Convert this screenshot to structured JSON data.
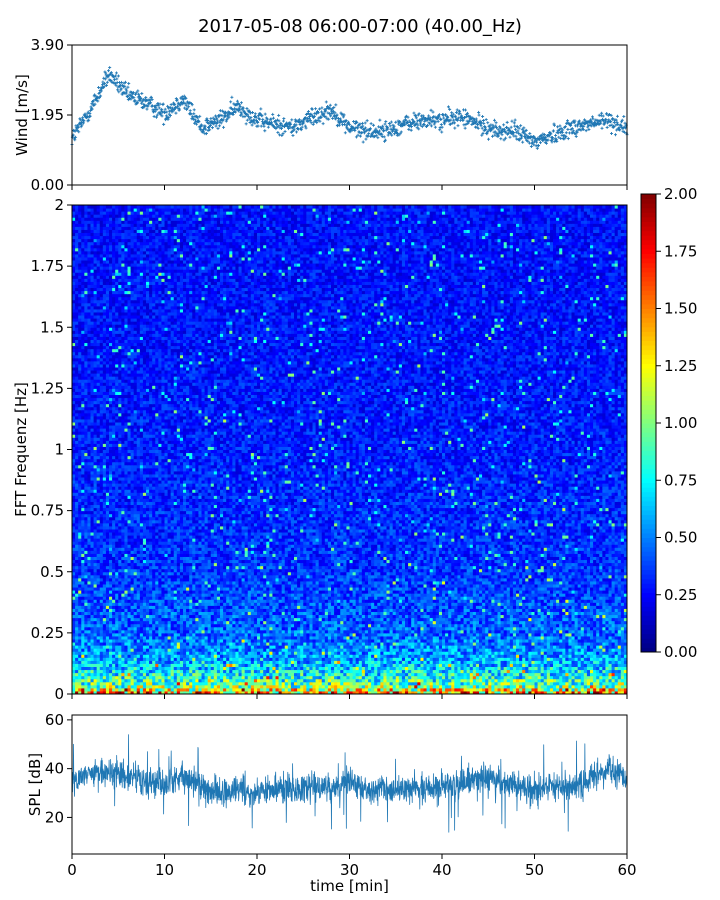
{
  "title": "2017-05-08 06:00-07:00 (40.00_Hz)",
  "chart_data": [
    {
      "type": "scatter",
      "panel": "wind",
      "ylabel": "Wind [m/s]",
      "xlim": [
        0,
        60
      ],
      "ylim": [
        0,
        3.9
      ],
      "yticks": [
        0,
        1.95,
        3.9
      ],
      "yticklabels": [
        "0.00",
        "1.95",
        "3.90"
      ],
      "marker": "+",
      "color": "#1f77b4",
      "series": [
        {
          "name": "wind",
          "x": [
            0,
            2,
            4,
            6,
            8,
            10,
            12,
            14,
            16,
            18,
            20,
            22,
            24,
            26,
            28,
            30,
            32,
            34,
            36,
            38,
            40,
            42,
            44,
            46,
            48,
            50,
            52,
            54,
            56,
            58,
            60
          ],
          "y": [
            1.3,
            2.1,
            3.1,
            2.5,
            2.3,
            2.0,
            2.4,
            1.6,
            1.8,
            2.2,
            1.8,
            1.7,
            1.6,
            1.9,
            2.1,
            1.6,
            1.5,
            1.5,
            1.7,
            1.8,
            1.8,
            1.9,
            1.7,
            1.5,
            1.5,
            1.2,
            1.4,
            1.6,
            1.7,
            1.8,
            1.6
          ]
        }
      ]
    },
    {
      "type": "heatmap",
      "panel": "spectrogram",
      "ylabel": "FFT Frequenz [Hz]",
      "xlim": [
        0,
        60
      ],
      "ylim": [
        0,
        2
      ],
      "yticks": [
        0,
        0.25,
        0.5,
        0.75,
        1,
        1.25,
        1.5,
        1.75,
        2
      ],
      "yticklabels": [
        "0",
        "0.25",
        "0.5",
        "0.75",
        "1",
        "1.25",
        "1.5",
        "1.75",
        "2"
      ],
      "colormap": "jet",
      "colorbar": {
        "range": [
          0,
          2
        ],
        "ticks": [
          0,
          0.25,
          0.5,
          0.75,
          1,
          1.25,
          1.5,
          1.75,
          2
        ],
        "ticklabels": [
          "0.00",
          "0.25",
          "0.50",
          "0.75",
          "1.00",
          "1.25",
          "1.50",
          "1.75",
          "2.00"
        ]
      },
      "typical_level": {
        "frequency_hz": [
          0.0,
          0.03,
          0.08,
          0.15,
          0.25,
          0.5,
          1.0,
          1.5,
          2.0
        ],
        "intensity": [
          1.5,
          1.0,
          0.75,
          0.55,
          0.45,
          0.35,
          0.3,
          0.28,
          0.27
        ]
      }
    },
    {
      "type": "line",
      "panel": "spl",
      "xlabel": "time [min]",
      "ylabel": "SPL [dB]",
      "xlim": [
        0,
        60
      ],
      "ylim": [
        5,
        62
      ],
      "yticks": [
        20,
        40,
        60
      ],
      "yticklabels": [
        "20",
        "40",
        "60"
      ],
      "xticks": [
        0,
        10,
        20,
        30,
        40,
        50,
        60
      ],
      "xticklabels": [
        "0",
        "10",
        "20",
        "30",
        "40",
        "50",
        "60"
      ],
      "color": "#1f77b4",
      "series": [
        {
          "name": "SPL",
          "x": [
            0,
            2,
            4,
            6,
            8,
            10,
            12,
            14,
            16,
            18,
            20,
            22,
            24,
            26,
            28,
            30,
            32,
            34,
            36,
            38,
            40,
            42,
            44,
            46,
            48,
            50,
            52,
            54,
            56,
            58,
            60
          ],
          "y": [
            35,
            38,
            39,
            37,
            34,
            33,
            37,
            32,
            30,
            31,
            30,
            33,
            31,
            33,
            32,
            35,
            31,
            31,
            32,
            32,
            33,
            34,
            37,
            34,
            33,
            32,
            33,
            32,
            36,
            40,
            35
          ]
        }
      ]
    }
  ]
}
